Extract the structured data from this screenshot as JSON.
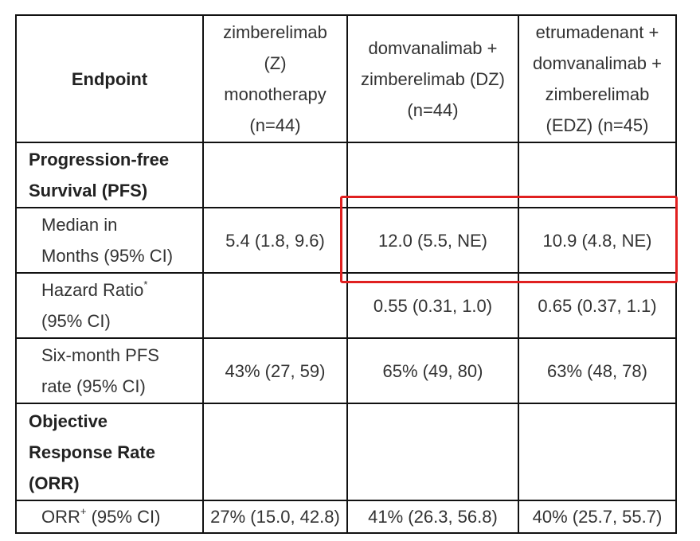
{
  "table": {
    "header": {
      "endpoint": "Endpoint",
      "z_lines": [
        "zimberelimab",
        "(Z)",
        "monotherapy",
        "(n=44)"
      ],
      "dz_lines": [
        "domvanalimab +",
        "zimberelimab (DZ)",
        "(n=44)"
      ],
      "edz_lines": [
        "etrumadenant +",
        "domvanalimab +",
        "zimberelimab",
        "(EDZ) (n=45)"
      ]
    },
    "pfs_section_lines": [
      "Progression-free",
      "Survival (PFS)"
    ],
    "median": {
      "label_lines": [
        "Median in",
        "Months (95% CI)"
      ],
      "z": "5.4 (1.8, 9.6)",
      "dz": "12.0 (5.5, NE)",
      "edz": "10.9 (4.8, NE)"
    },
    "hazard": {
      "label_main": "Hazard Ratio",
      "label_sup": "*",
      "label_line2": "(95% CI)",
      "z": "",
      "dz": "0.55 (0.31, 1.0)",
      "edz": "0.65 (0.37, 1.1)"
    },
    "six_month": {
      "label_lines": [
        "Six-month PFS",
        "rate (95% CI)"
      ],
      "z": "43% (27, 59)",
      "dz": "65% (49, 80)",
      "edz": "63% (48, 78)"
    },
    "orr_section_lines": [
      "Objective",
      "Response Rate",
      "(ORR)"
    ],
    "orr": {
      "label_main": "ORR",
      "label_sup": "+",
      "label_rest": " (95% CI)",
      "z": "27% (15.0, 42.8)",
      "dz": "41% (26.3, 56.8)",
      "edz": "40% (25.7, 55.7)"
    }
  },
  "highlight_color": "#e02020"
}
